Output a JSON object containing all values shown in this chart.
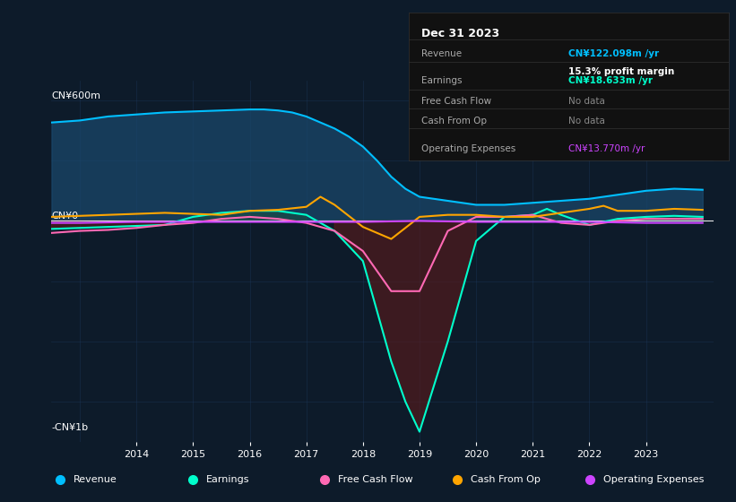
{
  "bg_color": "#0d1b2a",
  "chart_bg": "#0d1b2a",
  "grid_color": "#1e3a5f",
  "title_box": {
    "date": "Dec 31 2023",
    "rows": [
      {
        "label": "Revenue",
        "value": "CN¥122.098m /yr",
        "value_color": "#00bfff",
        "dimmed": false
      },
      {
        "label": "Earnings",
        "value": "CN¥18.633m /yr",
        "value_color": "#00ffcc",
        "dimmed": false
      },
      {
        "label": "",
        "value": "15.3% profit margin",
        "value_color": "#ffffff",
        "dimmed": false,
        "bold_part": "15.3%"
      },
      {
        "label": "Free Cash Flow",
        "value": "No data",
        "value_color": "#888888",
        "dimmed": true
      },
      {
        "label": "Cash From Op",
        "value": "No data",
        "value_color": "#888888",
        "dimmed": true
      },
      {
        "label": "Operating Expenses",
        "value": "CN¥13.770m /yr",
        "value_color": "#cc44ff",
        "dimmed": false
      }
    ]
  },
  "y_label_top": "CN¥600m",
  "y_label_zero": "CN¥0",
  "y_label_bottom": "-CN¥1b",
  "x_ticks": [
    "2014",
    "2015",
    "2016",
    "2017",
    "2018",
    "2019",
    "2020",
    "2021",
    "2022",
    "2023"
  ],
  "legend": [
    {
      "label": "Revenue",
      "color": "#00bfff"
    },
    {
      "label": "Earnings",
      "color": "#00ffcc"
    },
    {
      "label": "Free Cash Flow",
      "color": "#ff69b4"
    },
    {
      "label": "Cash From Op",
      "color": "#ffa500"
    },
    {
      "label": "Operating Expenses",
      "color": "#cc44ff"
    }
  ],
  "revenue": {
    "x": [
      2012.5,
      2013,
      2013.5,
      2014,
      2014.5,
      2015,
      2015.5,
      2016,
      2016.25,
      2016.5,
      2016.75,
      2017,
      2017.25,
      2017.5,
      2017.75,
      2018,
      2018.25,
      2018.5,
      2018.75,
      2019,
      2019.5,
      2020,
      2020.5,
      2021,
      2021.5,
      2022,
      2022.5,
      2023,
      2023.5,
      2024
    ],
    "y": [
      490,
      500,
      520,
      530,
      540,
      545,
      550,
      555,
      555,
      550,
      540,
      520,
      490,
      460,
      420,
      370,
      300,
      220,
      160,
      120,
      100,
      80,
      80,
      90,
      100,
      110,
      130,
      150,
      160,
      155
    ],
    "color": "#00bfff",
    "fill_color": "#1a4a6e",
    "fill_alpha": 0.7
  },
  "earnings": {
    "x": [
      2012.5,
      2013,
      2013.5,
      2014,
      2014.5,
      2015,
      2015.5,
      2016,
      2016.5,
      2017,
      2017.5,
      2018,
      2018.25,
      2018.5,
      2018.75,
      2019,
      2019.5,
      2020,
      2020.5,
      2021,
      2021.25,
      2021.5,
      2022,
      2022.5,
      2023,
      2023.5,
      2024
    ],
    "y": [
      -40,
      -35,
      -30,
      -25,
      -20,
      20,
      40,
      50,
      50,
      30,
      -50,
      -200,
      -450,
      -700,
      -900,
      -1050,
      -600,
      -100,
      20,
      30,
      60,
      30,
      -20,
      10,
      20,
      25,
      20
    ],
    "color": "#00ffcc",
    "fill_color": "#5c1a1a",
    "fill_alpha": 0.6
  },
  "free_cash_flow": {
    "x": [
      2012.5,
      2013,
      2013.5,
      2014,
      2014.5,
      2015,
      2015.5,
      2016,
      2016.5,
      2017,
      2017.5,
      2018,
      2018.5,
      2019,
      2019.5,
      2020,
      2020.5,
      2021,
      2021.5,
      2022,
      2022.5,
      2023,
      2023.5,
      2024
    ],
    "y": [
      -60,
      -50,
      -45,
      -35,
      -20,
      -10,
      10,
      20,
      10,
      -10,
      -50,
      -150,
      -350,
      -350,
      -50,
      20,
      20,
      30,
      -10,
      -20,
      0,
      10,
      10,
      10
    ],
    "color": "#ff69b4"
  },
  "cash_from_op": {
    "x": [
      2012.5,
      2013,
      2013.5,
      2014,
      2014.5,
      2015,
      2015.5,
      2016,
      2016.5,
      2017,
      2017.25,
      2017.5,
      2018,
      2018.5,
      2019,
      2019.5,
      2020,
      2020.5,
      2021,
      2021.5,
      2022,
      2022.25,
      2022.5,
      2023,
      2023.5,
      2024
    ],
    "y": [
      20,
      25,
      30,
      35,
      40,
      35,
      30,
      50,
      55,
      70,
      120,
      80,
      -30,
      -90,
      20,
      30,
      30,
      20,
      20,
      40,
      60,
      75,
      50,
      50,
      60,
      55
    ],
    "color": "#ffa500"
  },
  "operating_expenses": {
    "x": [
      2012.5,
      2013,
      2014,
      2015,
      2016,
      2017,
      2018,
      2019,
      2020,
      2021,
      2022,
      2023,
      2023.5,
      2024
    ],
    "y": [
      -10,
      -10,
      -5,
      -5,
      -5,
      -5,
      -5,
      0,
      -5,
      -5,
      -5,
      -10,
      -10,
      -10
    ],
    "color": "#cc44ff"
  },
  "ylim": [
    -1100,
    700
  ],
  "xlim": [
    2012.5,
    2024.2
  ]
}
